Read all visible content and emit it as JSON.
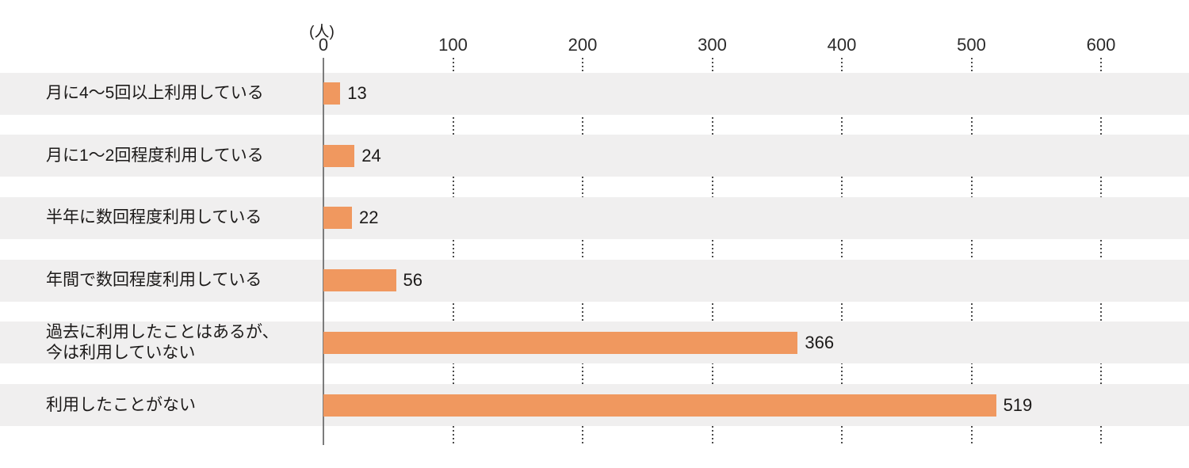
{
  "chart_data": {
    "type": "bar",
    "orientation": "horizontal",
    "title": "",
    "unit_label": "(人)",
    "categories": [
      "月に4〜5回以上利用している",
      "月に1〜2回程度利用している",
      "半年に数回程度利用している",
      "年間で数回程度利用している",
      "過去に利用したことはあるが、\n今は利用していない",
      "利用したことがない"
    ],
    "values": [
      13,
      24,
      22,
      56,
      366,
      519
    ],
    "value_labels": [
      "13",
      "24",
      "22",
      "56",
      "366",
      "519"
    ],
    "x_ticks": [
      "0",
      "100",
      "200",
      "300",
      "400",
      "500",
      "600"
    ],
    "x_tick_values": [
      0,
      100,
      200,
      300,
      400,
      500,
      600
    ],
    "xlim": [
      0,
      668
    ],
    "grid": "vertical-dotted-between-row-bands",
    "legend": "none",
    "colors": {
      "bar": "#F0985F",
      "row_band": "#F0EFEF",
      "text": "#1C1A19",
      "axis_line": "#7C7C7C",
      "gridline_dots": "#4B4B4B",
      "background": "#FFFFFF"
    }
  }
}
